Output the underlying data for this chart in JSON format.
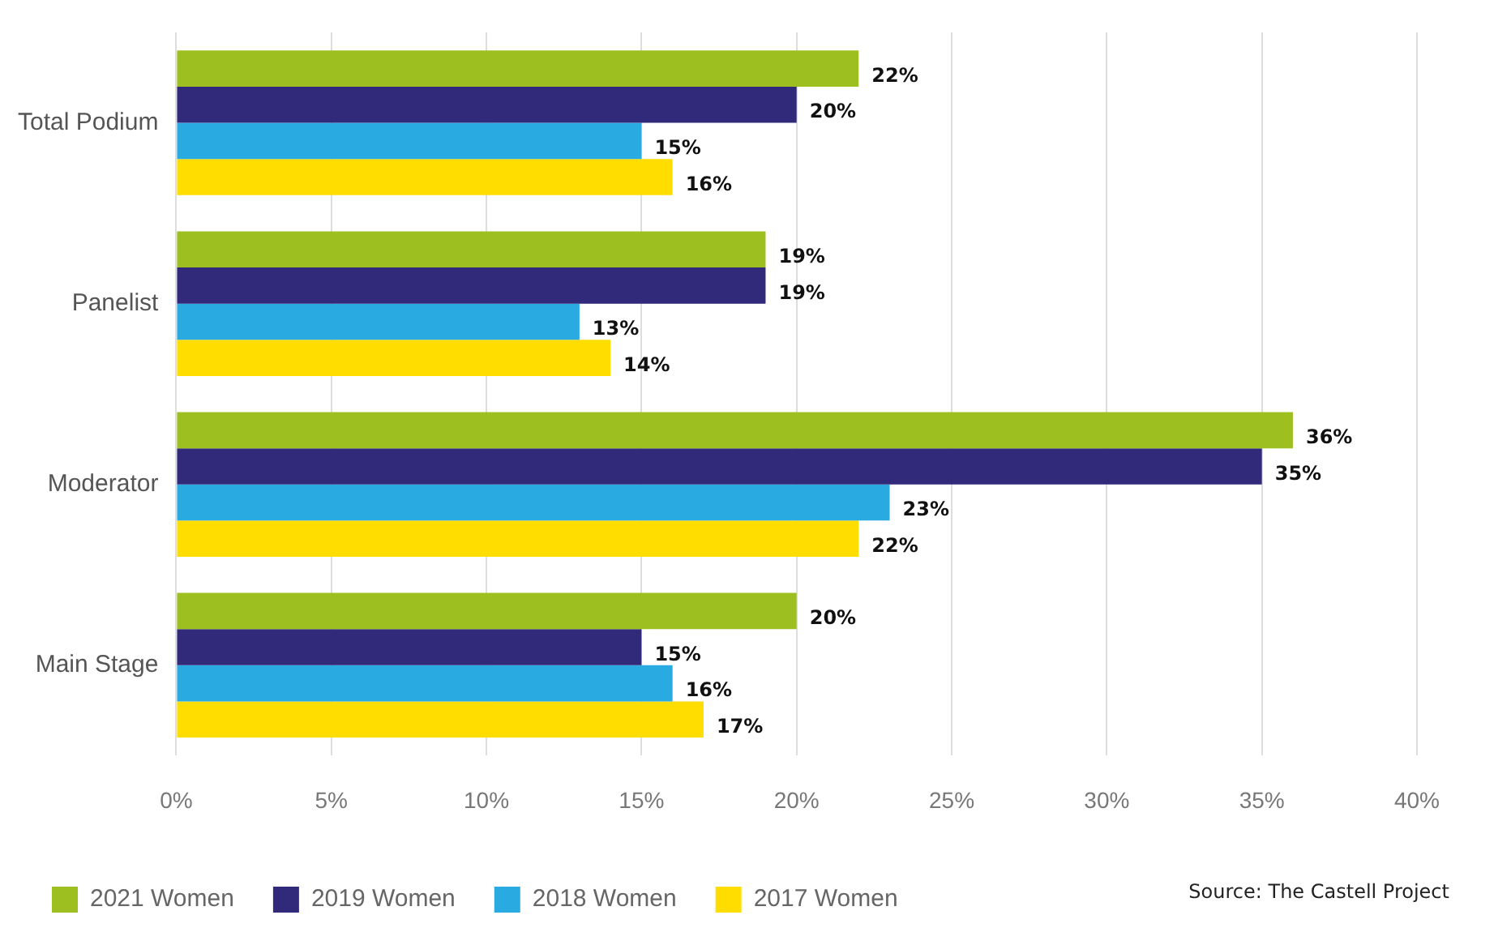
{
  "chart_data": {
    "type": "bar",
    "orientation": "horizontal",
    "categories": [
      "Total Podium",
      "Panelist",
      "Moderator",
      "Main Stage"
    ],
    "series": [
      {
        "name": "2021 Women",
        "color": "#9dbf1f",
        "values": [
          22,
          19,
          36,
          20
        ],
        "value_labels": [
          "22%",
          "19%",
          "36%",
          "20%"
        ]
      },
      {
        "name": "2019 Women",
        "color": "#312a7a",
        "values": [
          20,
          19,
          35,
          15
        ],
        "value_labels": [
          "20%",
          "19%",
          "35%",
          "15%"
        ]
      },
      {
        "name": "2018 Women",
        "color": "#29aae1",
        "values": [
          15,
          13,
          23,
          16
        ],
        "value_labels": [
          "15%",
          "13%",
          "23%",
          "16%"
        ]
      },
      {
        "name": "2017 Women",
        "color": "#ffdd00",
        "values": [
          16,
          14,
          22,
          17
        ],
        "value_labels": [
          "16%",
          "14%",
          "22%",
          "17%"
        ]
      }
    ],
    "xlim": [
      0,
      40
    ],
    "xticks": [
      {
        "value": 0,
        "label": "0%"
      },
      {
        "value": 5,
        "label": "5%"
      },
      {
        "value": 10,
        "label": "10%"
      },
      {
        "value": 15,
        "label": "15%"
      },
      {
        "value": 20,
        "label": "20%"
      },
      {
        "value": 25,
        "label": "25%"
      },
      {
        "value": 30,
        "label": "30%"
      },
      {
        "value": 35,
        "label": "35%"
      },
      {
        "value": 40,
        "label": "40%"
      }
    ],
    "grid": "x",
    "legend": "bottom",
    "annotations": [
      "Source: The Castell Project"
    ]
  }
}
